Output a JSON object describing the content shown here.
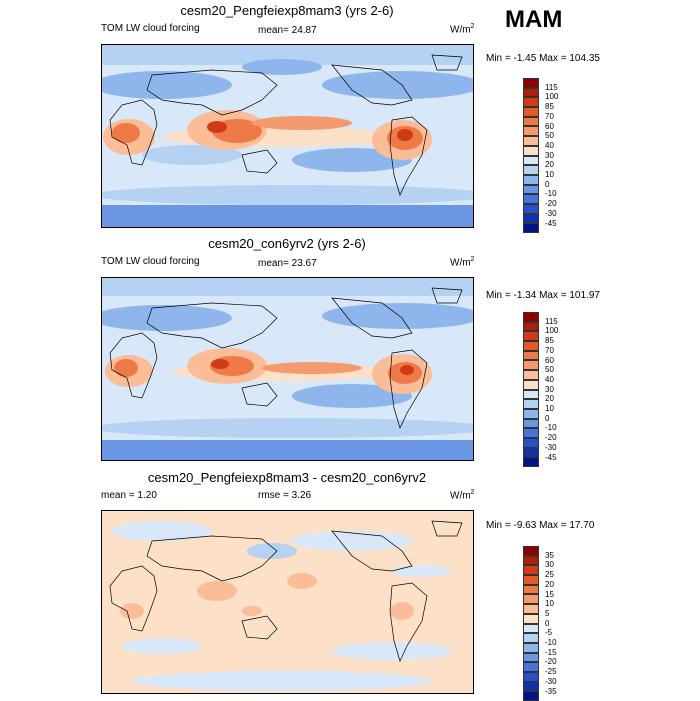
{
  "season": "MAM",
  "panels": [
    {
      "title": "cesm20_Pengfeiexp8mam3 (yrs 2-6)",
      "left_label": "TOM LW cloud forcing",
      "center_label": "mean=  24.87",
      "units": "W/m",
      "units_sup": "2",
      "minmax": "Min =  -1.45 Max = 104.35",
      "colorbar": {
        "labels": [
          "115",
          "100",
          "85",
          "70",
          "60",
          "50",
          "40",
          "30",
          "20",
          "10",
          "0",
          "-10",
          "-20",
          "-30",
          "-45"
        ],
        "colors": [
          "#8b0000",
          "#b01e0a",
          "#d03a14",
          "#e25a28",
          "#ee7a48",
          "#f59a6e",
          "#fbbd98",
          "#fde0c8",
          "#d8e8f8",
          "#b5d2f2",
          "#8fb6ec",
          "#6a96e4",
          "#4674da",
          "#2850cc",
          "#1230b4",
          "#001488"
        ]
      }
    },
    {
      "title": "cesm20_con6yrv2 (yrs 2-6)",
      "left_label": "TOM LW cloud forcing",
      "center_label": "mean=  23.67",
      "units": "W/m",
      "units_sup": "2",
      "minmax": "Min =  -1.34 Max = 101.97",
      "colorbar": {
        "labels": [
          "115",
          "100",
          "85",
          "70",
          "60",
          "50",
          "40",
          "30",
          "20",
          "10",
          "0",
          "-10",
          "-20",
          "-30",
          "-45"
        ],
        "colors": [
          "#8b0000",
          "#b01e0a",
          "#d03a14",
          "#e25a28",
          "#ee7a48",
          "#f59a6e",
          "#fbbd98",
          "#fde0c8",
          "#d8e8f8",
          "#b5d2f2",
          "#8fb6ec",
          "#6a96e4",
          "#4674da",
          "#2850cc",
          "#1230b4",
          "#001488"
        ]
      }
    },
    {
      "title": "cesm20_Pengfeiexp8mam3 - cesm20_con6yrv2",
      "left_label": "mean =   1.20",
      "center_label": "rmse =   3.26",
      "units": "W/m",
      "units_sup": "2",
      "minmax": "Min =  -9.63 Max =  17.70",
      "colorbar": {
        "labels": [
          "35",
          "30",
          "25",
          "20",
          "15",
          "10",
          "5",
          "0",
          "-5",
          "-10",
          "-15",
          "-20",
          "-25",
          "-30",
          "-35"
        ],
        "colors": [
          "#8b0000",
          "#b01e0a",
          "#d03a14",
          "#e25a28",
          "#ee7a48",
          "#f59a6e",
          "#fbbd98",
          "#fde0c8",
          "#d8e8f8",
          "#b5d2f2",
          "#8fb6ec",
          "#6a96e4",
          "#4674da",
          "#2850cc",
          "#1230b4",
          "#001488"
        ]
      }
    }
  ]
}
